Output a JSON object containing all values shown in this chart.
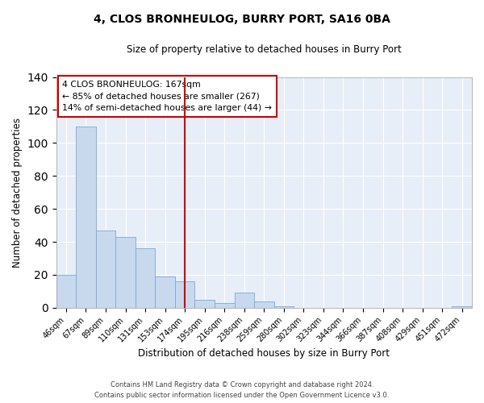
{
  "title": "4, CLOS BRONHEULOG, BURRY PORT, SA16 0BA",
  "subtitle": "Size of property relative to detached houses in Burry Port",
  "xlabel": "Distribution of detached houses by size in Burry Port",
  "ylabel": "Number of detached properties",
  "bar_labels": [
    "46sqm",
    "67sqm",
    "89sqm",
    "110sqm",
    "131sqm",
    "153sqm",
    "174sqm",
    "195sqm",
    "216sqm",
    "238sqm",
    "259sqm",
    "280sqm",
    "302sqm",
    "323sqm",
    "344sqm",
    "366sqm",
    "387sqm",
    "408sqm",
    "429sqm",
    "451sqm",
    "472sqm"
  ],
  "bar_heights": [
    20,
    110,
    47,
    43,
    36,
    19,
    16,
    5,
    3,
    9,
    4,
    1,
    0,
    0,
    0,
    0,
    0,
    0,
    0,
    0,
    1
  ],
  "bar_color": "#c8d9ee",
  "bar_edge_color": "#7aaad0",
  "vline_x": 6,
  "vline_color": "#cc0000",
  "ylim": [
    0,
    140
  ],
  "yticks": [
    0,
    20,
    40,
    60,
    80,
    100,
    120,
    140
  ],
  "annotation_title": "4 CLOS BRONHEULOG: 167sqm",
  "annotation_line1": "← 85% of detached houses are smaller (267)",
  "annotation_line2": "14% of semi-detached houses are larger (44) →",
  "box_color": "#cc0000",
  "footer_line1": "Contains HM Land Registry data © Crown copyright and database right 2024.",
  "footer_line2": "Contains public sector information licensed under the Open Government Licence v3.0.",
  "background_color": "#ffffff",
  "plot_bg_color": "#e8eef7"
}
